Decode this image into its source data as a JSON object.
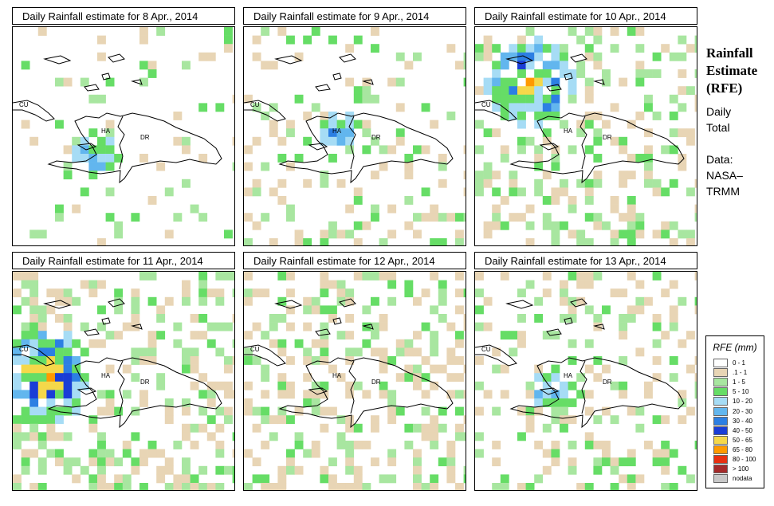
{
  "title_prefix": "Daily Rainfall estimate for",
  "panels": [
    {
      "title": "Daily Rainfall estimate for  8 Apr., 2014",
      "labels": {
        "cu": "CU",
        "ha": "HA",
        "dr": "DR"
      }
    },
    {
      "title": "Daily Rainfall estimate for  9 Apr., 2014",
      "labels": {
        "cu": "CU",
        "ha": "HA",
        "dr": "DR"
      }
    },
    {
      "title": "Daily Rainfall estimate for  10 Apr., 2014",
      "labels": {
        "cu": "CU",
        "ha": "HA",
        "dr": "DR"
      }
    },
    {
      "title": "Daily Rainfall estimate for  11 Apr., 2014",
      "labels": {
        "cu": "CU",
        "ha": "HA",
        "dr": "DR"
      }
    },
    {
      "title": "Daily Rainfall estimate for  12 Apr., 2014",
      "labels": {
        "cu": "CU",
        "ha": "HA",
        "dr": "DR"
      }
    },
    {
      "title": "Daily Rainfall estimate for  13 Apr., 2014",
      "labels": {
        "cu": "CU",
        "ha": "HA",
        "dr": "DR"
      }
    }
  ],
  "side": {
    "title_line1": "Rainfall",
    "title_line2": "Estimate",
    "title_line3": "(RFE)",
    "daily": "Daily",
    "total": "Total",
    "data_label": "Data:",
    "source1": "NASA–",
    "source2": "TRMM"
  },
  "legend": {
    "title": "RFE (mm)",
    "items": [
      {
        "label": "0 - 1",
        "color": "#ffffff"
      },
      {
        "label": ".1 - 1",
        "color": "#e8d5b5"
      },
      {
        "label": "1 - 5",
        "color": "#a8e6a0"
      },
      {
        "label": "5 - 10",
        "color": "#66dd66"
      },
      {
        "label": "10 - 20",
        "color": "#a6dcf5"
      },
      {
        "label": "20 - 30",
        "color": "#62b6ee"
      },
      {
        "label": "30 - 40",
        "color": "#2c7fe3"
      },
      {
        "label": "40 - 50",
        "color": "#1a3ed6"
      },
      {
        "label": "50 - 65",
        "color": "#f5d84a"
      },
      {
        "label": "65 - 80",
        "color": "#ff9a00"
      },
      {
        "label": "80 - 100",
        "color": "#e83010"
      },
      {
        "label": "> 100",
        "color": "#a52a2a"
      },
      {
        "label": "nodata",
        "color": "#c8c8c8"
      }
    ]
  }
}
